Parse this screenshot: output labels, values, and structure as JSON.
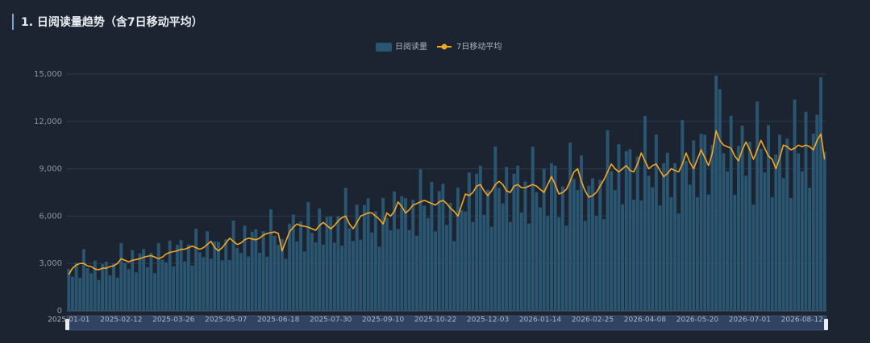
{
  "chart_data": {
    "type": "bar",
    "title": "1. 日阅读量趋势（含7日移动平均）",
    "categories": [
      "2025-01-01",
      null,
      null,
      null,
      null,
      null,
      null,
      null,
      null,
      null,
      null,
      null,
      null,
      null,
      "2025-02-12",
      null,
      null,
      null,
      null,
      null,
      null,
      null,
      null,
      null,
      null,
      null,
      null,
      null,
      "2025-03-26",
      null,
      null,
      null,
      null,
      null,
      null,
      null,
      null,
      null,
      null,
      null,
      null,
      null,
      "2025-05-07",
      null,
      null,
      null,
      null,
      null,
      null,
      null,
      null,
      null,
      null,
      null,
      null,
      null,
      "2025-06-18",
      null,
      null,
      null,
      null,
      null,
      null,
      null,
      null,
      null,
      null,
      null,
      null,
      null,
      "2025-07-30",
      null,
      null,
      null,
      null,
      null,
      null,
      null,
      null,
      null,
      null,
      null,
      null,
      null,
      "2025-09-10",
      null,
      null,
      null,
      null,
      null,
      null,
      null,
      null,
      null,
      null,
      null,
      null,
      null,
      "2025-10-22",
      null,
      null,
      null,
      null,
      null,
      null,
      null,
      null,
      null,
      null,
      null,
      null,
      null,
      "2025-12-03",
      null,
      null,
      null,
      null,
      null,
      null,
      null,
      null,
      null,
      null,
      null,
      null,
      null,
      "2026-01-14",
      null,
      null,
      null,
      null,
      null,
      null,
      null,
      null,
      null,
      null,
      null,
      null,
      null,
      "2026-02-25",
      null,
      null,
      null,
      null,
      null,
      null,
      null,
      null,
      null,
      null,
      null,
      null,
      null,
      "2026-04-08",
      null,
      null,
      null,
      null,
      null,
      null,
      null,
      null,
      null,
      null,
      null,
      null,
      null,
      "2026-05-20",
      null,
      null,
      null,
      null,
      null,
      null,
      null,
      null,
      null,
      null,
      null,
      null,
      null,
      "2026-07-01",
      null,
      null,
      null,
      null,
      null,
      null,
      null,
      null,
      null,
      null,
      null,
      null,
      null,
      "2026-08-12",
      null,
      null,
      null,
      null,
      null,
      null
    ],
    "series": [
      {
        "name": "日阅读量",
        "type": "bar",
        "color": "#2b5672",
        "values": [
          2650,
          2160,
          3050,
          2100,
          3900,
          2710,
          2380,
          3180,
          1950,
          2970,
          3110,
          2240,
          2990,
          2100,
          4290,
          3040,
          2640,
          3840,
          2440,
          3630,
          3910,
          2760,
          3680,
          2380,
          4290,
          3230,
          3060,
          4440,
          2810,
          4180,
          4490,
          3120,
          4200,
          2870,
          5200,
          3710,
          3400,
          5040,
          3300,
          4400,
          4370,
          3200,
          4520,
          3220,
          5720,
          3990,
          3660,
          5400,
          3450,
          5010,
          5180,
          3680,
          5040,
          3430,
          6440,
          4750,
          4170,
          4560,
          3300,
          5500,
          6100,
          4400,
          5670,
          3750,
          6890,
          4940,
          4340,
          6480,
          4200,
          5940,
          5980,
          4320,
          5990,
          4130,
          7800,
          5230,
          4420,
          6720,
          4500,
          6710,
          7130,
          4960,
          6300,
          4060,
          7150,
          5890,
          5100,
          7560,
          5180,
          7260,
          7130,
          5120,
          7040,
          4760,
          8970,
          6650,
          5870,
          8160,
          5030,
          7590,
          8050,
          5440,
          6830,
          4410,
          7800,
          6370,
          6290,
          8760,
          5630,
          8690,
          9200,
          6080,
          7670,
          5320,
          10400,
          7790,
          6800,
          9120,
          5630,
          8690,
          9200,
          6240,
          8190,
          5530,
          10400,
          7510,
          6550,
          9000,
          6000,
          9350,
          9200,
          5920,
          7880,
          5390,
          10660,
          8360,
          7650,
          9840,
          5700,
          7920,
          8400,
          6000,
          8300,
          5810,
          11440,
          8840,
          7650,
          10560,
          6750,
          10120,
          10240,
          7040,
          9770,
          7000,
          12350,
          8550,
          7820,
          11160,
          6680,
          9350,
          10010,
          7200,
          9350,
          6160,
          12090,
          9500,
          7990,
          10800,
          7200,
          11220,
          11160,
          7360,
          10500,
          14900,
          14040,
          9980,
          8840,
          12360,
          7350,
          10450,
          11730,
          8560,
          10710,
          6720,
          13260,
          10260,
          8760,
          11760,
          7200,
          9900,
          11160,
          8400,
          10920,
          7140,
          13390,
          9980,
          8840,
          12600,
          7800,
          11220,
          12420,
          14800,
          10080
        ]
      },
      {
        "name": "7日移动平均",
        "type": "line",
        "color": "#f5a623",
        "values": [
          2300,
          2700,
          2900,
          3000,
          3000,
          2850,
          2800,
          2650,
          2600,
          2700,
          2700,
          2800,
          2850,
          3000,
          3300,
          3200,
          3100,
          3200,
          3250,
          3300,
          3400,
          3450,
          3500,
          3400,
          3300,
          3400,
          3600,
          3700,
          3750,
          3800,
          3900,
          3900,
          4000,
          4100,
          4000,
          3900,
          4000,
          4200,
          4400,
          4000,
          3800,
          4000,
          4300,
          4600,
          4400,
          4200,
          4300,
          4500,
          4600,
          4550,
          4500,
          4600,
          4800,
          4900,
          4950,
          5000,
          4900,
          3800,
          4400,
          5000,
          5300,
          5500,
          5400,
          5350,
          5300,
          5200,
          5100,
          5400,
          5600,
          5400,
          5200,
          5400,
          5700,
          5900,
          6000,
          5500,
          5200,
          5600,
          6000,
          6100,
          6200,
          6200,
          6000,
          5800,
          5500,
          6200,
          6000,
          6300,
          6900,
          6600,
          6200,
          6400,
          6700,
          6800,
          6900,
          7000,
          6900,
          6800,
          6700,
          6900,
          7000,
          6800,
          6500,
          6300,
          6000,
          6700,
          7400,
          7300,
          7500,
          7900,
          8000,
          7600,
          7300,
          7600,
          8000,
          8200,
          8000,
          7600,
          7500,
          7900,
          8000,
          7800,
          7800,
          7900,
          8000,
          7900,
          7700,
          7500,
          8000,
          8500,
          8000,
          7400,
          7500,
          7700,
          8200,
          8800,
          9000,
          8200,
          7600,
          7200,
          7300,
          7500,
          7900,
          8300,
          8800,
          9300,
          9000,
          8800,
          9000,
          9200,
          8900,
          8800,
          9300,
          10000,
          9500,
          9000,
          9200,
          9300,
          8900,
          8500,
          8700,
          9000,
          8900,
          8800,
          9300,
          10000,
          9400,
          9000,
          9600,
          10200,
          9700,
          9200,
          10000,
          11400,
          10800,
          10500,
          10400,
          10300,
          9800,
          9500,
          10200,
          10700,
          10200,
          9600,
          10200,
          10800,
          10300,
          9800,
          9600,
          9000,
          9700,
          10500,
          10400,
          10200,
          10300,
          10500,
          10400,
          10500,
          10400,
          10200,
          10800,
          11200,
          9600
        ]
      }
    ],
    "ylim": [
      0,
      15000
    ],
    "yticks": [
      0,
      {
        "value": 3000,
        "label": "3,000"
      },
      {
        "value": 6000,
        "label": "6,000"
      },
      {
        "value": 9000,
        "label": "9,000"
      },
      {
        "value": 12000,
        "label": "12,000"
      },
      {
        "value": 15000,
        "label": "15,000"
      }
    ],
    "grid": true
  }
}
